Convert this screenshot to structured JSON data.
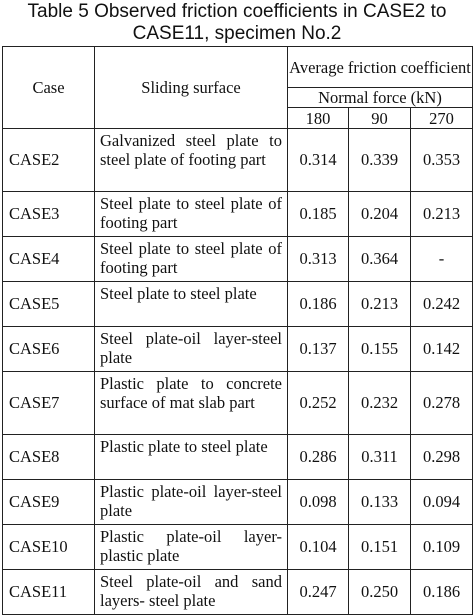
{
  "caption": "Table 5 Observed friction coefficients in CASE2 to CASE11, specimen No.2",
  "headers": {
    "case": "Case",
    "surface": "Sliding surface",
    "avg": "Average friction coefficient",
    "normal_force": "Normal force (kN)",
    "forces": [
      "180",
      "90",
      "270"
    ]
  },
  "rows": [
    {
      "case": "CASE2",
      "surface": "Galvanized steel plate to steel plate of footing part",
      "v180": "0.314",
      "v90": "0.339",
      "v270": "0.353"
    },
    {
      "case": "CASE3",
      "surface": "Steel plate to steel plate of footing part",
      "v180": "0.185",
      "v90": "0.204",
      "v270": "0.213"
    },
    {
      "case": "CASE4",
      "surface": "Steel plate to steel plate of footing part",
      "v180": "0.313",
      "v90": "0.364",
      "v270": "-"
    },
    {
      "case": "CASE5",
      "surface": "Steel plate to steel plate",
      "v180": "0.186",
      "v90": "0.213",
      "v270": "0.242"
    },
    {
      "case": "CASE6",
      "surface": "Steel plate-oil layer-steel plate",
      "v180": "0.137",
      "v90": "0.155",
      "v270": "0.142"
    },
    {
      "case": "CASE7",
      "surface": "Plastic plate to concrete surface of mat slab part",
      "v180": "0.252",
      "v90": "0.232",
      "v270": "0.278"
    },
    {
      "case": "CASE8",
      "surface": "Plastic plate to steel plate",
      "v180": "0.286",
      "v90": "0.311",
      "v270": "0.298"
    },
    {
      "case": "CASE9",
      "surface": "Plastic plate-oil layer-steel plate",
      "v180": "0.098",
      "v90": "0.133",
      "v270": "0.094"
    },
    {
      "case": "CASE10",
      "surface": "Plastic plate-oil layer-plastic plate",
      "v180": "0.104",
      "v90": "0.151",
      "v270": "0.109"
    },
    {
      "case": "CASE11",
      "surface": "Steel plate-oil and sand layers- steel plate",
      "v180": "0.247",
      "v90": "0.250",
      "v270": "0.186"
    }
  ]
}
